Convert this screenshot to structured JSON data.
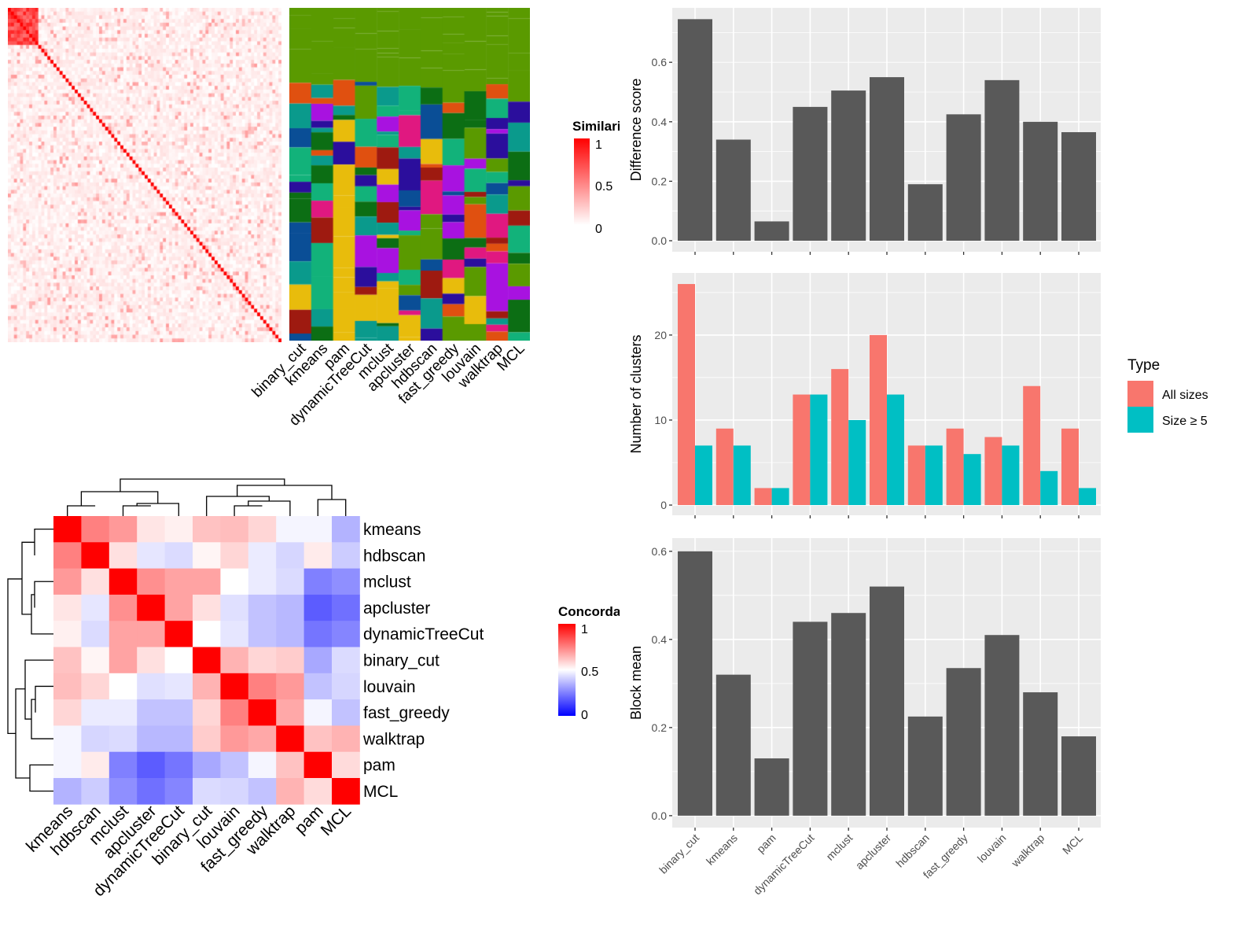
{
  "colors": {
    "bar_gray": "#595959",
    "panel_bg": "#ebebeb",
    "all_sizes": "#f8766d",
    "size_ge5": "#00bfc4",
    "low": "#0000ff",
    "mid": "#ffffff",
    "high": "#ff0000",
    "cluster_palette": [
      "#5a9a00",
      "#e8bc0c",
      "#0a9a8c",
      "#2b0e9c",
      "#0c6e14",
      "#12b27a",
      "#9e1a10",
      "#0a4e96",
      "#a812e0",
      "#e01880",
      "#e05010"
    ]
  },
  "chart_data": [
    {
      "type": "heatmap",
      "title": "",
      "legend_title": "Similarity",
      "legend_ticks": [
        "1",
        "0.5",
        "0"
      ],
      "scale": [
        0,
        1
      ],
      "note_colors": [
        "#ffffff",
        "#ff0000"
      ]
    },
    {
      "type": "heatmap",
      "title": "",
      "categories": [
        "binary_cut",
        "kmeans",
        "pam",
        "dynamicTreeCut",
        "mclust",
        "apcluster",
        "hdbscan",
        "fast_greedy",
        "louvain",
        "walktrap",
        "MCL"
      ]
    },
    {
      "type": "heatmap",
      "legend_title": "Concordance",
      "legend_ticks": [
        "1",
        "0.5",
        "0"
      ],
      "scale": [
        0,
        1
      ],
      "rows": [
        "kmeans",
        "hdbscan",
        "mclust",
        "apcluster",
        "dynamicTreeCut",
        "binary_cut",
        "louvain",
        "fast_greedy",
        "walktrap",
        "pam",
        "MCL"
      ],
      "columns": [
        "kmeans",
        "hdbscan",
        "mclust",
        "apcluster",
        "dynamicTreeCut",
        "binary_cut",
        "louvain",
        "fast_greedy",
        "walktrap",
        "pam",
        "MCL"
      ],
      "values": [
        [
          1.0,
          0.75,
          0.7,
          0.55,
          0.53,
          0.62,
          0.63,
          0.58,
          0.48,
          0.48,
          0.35
        ],
        [
          0.75,
          1.0,
          0.56,
          0.45,
          0.43,
          0.52,
          0.58,
          0.46,
          0.42,
          0.54,
          0.4
        ],
        [
          0.7,
          0.56,
          1.0,
          0.72,
          0.68,
          0.68,
          0.5,
          0.46,
          0.43,
          0.25,
          0.28
        ],
        [
          0.55,
          0.45,
          0.72,
          1.0,
          0.68,
          0.56,
          0.44,
          0.38,
          0.36,
          0.18,
          0.22
        ],
        [
          0.53,
          0.43,
          0.68,
          0.68,
          1.0,
          0.5,
          0.45,
          0.38,
          0.36,
          0.23,
          0.26
        ],
        [
          0.62,
          0.52,
          0.68,
          0.56,
          0.5,
          1.0,
          0.65,
          0.58,
          0.6,
          0.33,
          0.43
        ],
        [
          0.63,
          0.58,
          0.5,
          0.44,
          0.45,
          0.65,
          1.0,
          0.75,
          0.7,
          0.38,
          0.42
        ],
        [
          0.58,
          0.46,
          0.46,
          0.38,
          0.38,
          0.58,
          0.75,
          1.0,
          0.67,
          0.48,
          0.38
        ],
        [
          0.48,
          0.42,
          0.43,
          0.36,
          0.36,
          0.6,
          0.7,
          0.67,
          1.0,
          0.62,
          0.65
        ],
        [
          0.48,
          0.54,
          0.25,
          0.18,
          0.23,
          0.33,
          0.38,
          0.48,
          0.62,
          1.0,
          0.57
        ],
        [
          0.35,
          0.4,
          0.28,
          0.22,
          0.26,
          0.43,
          0.42,
          0.38,
          0.65,
          0.57,
          1.0
        ]
      ]
    },
    {
      "type": "bar",
      "ylabel": "Difference score",
      "categories": [
        "binary_cut",
        "kmeans",
        "pam",
        "dynamicTreeCut",
        "mclust",
        "apcluster",
        "hdbscan",
        "fast_greedy",
        "louvain",
        "walktrap",
        "MCL"
      ],
      "values": [
        0.745,
        0.34,
        0.065,
        0.45,
        0.505,
        0.55,
        0.19,
        0.425,
        0.54,
        0.4,
        0.365
      ],
      "yticks": [
        "0.0",
        "0.2",
        "0.4",
        "0.6"
      ],
      "ylim": [
        -0.037,
        0.783
      ],
      "grid": true
    },
    {
      "type": "bar",
      "ylabel": "Number of clusters",
      "categories": [
        "binary_cut",
        "kmeans",
        "pam",
        "dynamicTreeCut",
        "mclust",
        "apcluster",
        "hdbscan",
        "fast_greedy",
        "louvain",
        "walktrap",
        "MCL"
      ],
      "series": [
        {
          "name": "All sizes",
          "values": [
            26,
            9,
            2,
            13,
            16,
            20,
            7,
            9,
            8,
            14,
            9
          ]
        },
        {
          "name": "Size ≥ 5",
          "values": [
            7,
            7,
            2,
            13,
            10,
            13,
            7,
            6,
            7,
            4,
            2
          ]
        }
      ],
      "yticks": [
        "0",
        "10",
        "20"
      ],
      "ylim": [
        -1.2,
        27.3
      ],
      "legend_title": "Type",
      "legend_position": "right",
      "grid": true
    },
    {
      "type": "bar",
      "ylabel": "Block mean",
      "categories": [
        "binary_cut",
        "kmeans",
        "pam",
        "dynamicTreeCut",
        "mclust",
        "apcluster",
        "hdbscan",
        "fast_greedy",
        "louvain",
        "walktrap",
        "MCL"
      ],
      "values": [
        0.6,
        0.32,
        0.13,
        0.44,
        0.46,
        0.52,
        0.225,
        0.335,
        0.41,
        0.28,
        0.18
      ],
      "yticks": [
        "0.0",
        "0.2",
        "0.4",
        "0.6"
      ],
      "ylim": [
        -0.027,
        0.63
      ],
      "grid": true
    }
  ]
}
